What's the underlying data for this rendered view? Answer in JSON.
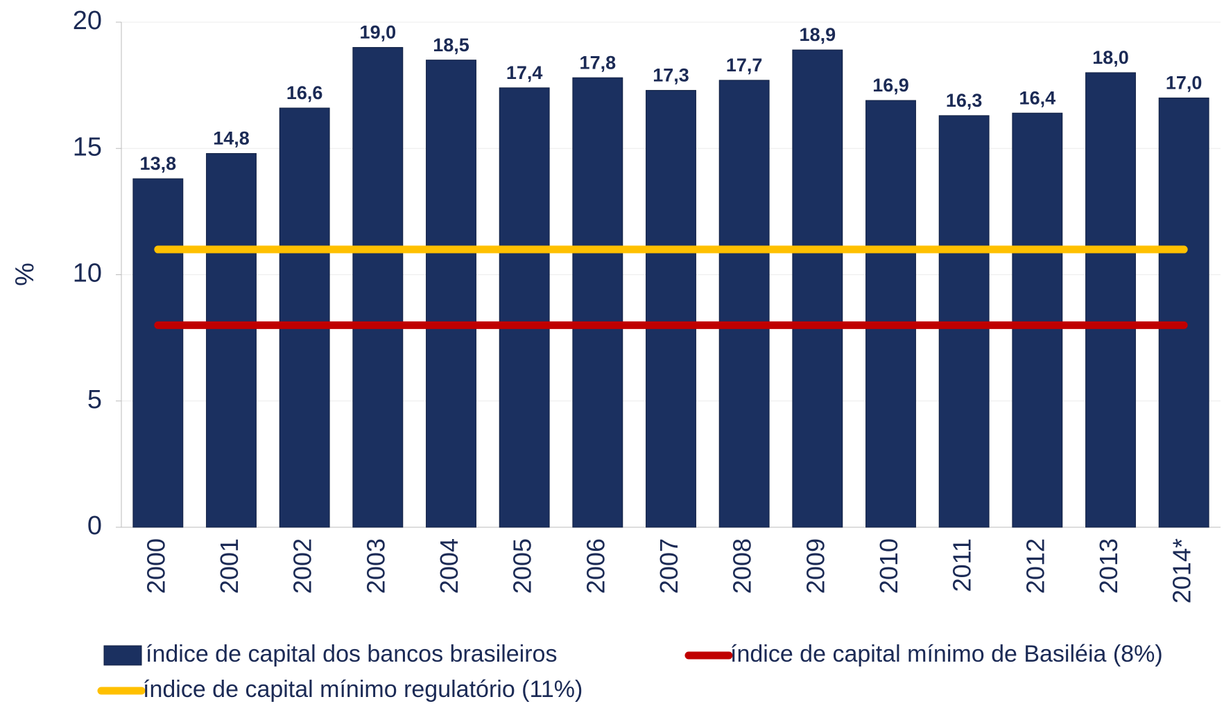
{
  "chart_data": {
    "type": "bar",
    "y_label": "%",
    "categories": [
      "2000",
      "2001",
      "2002",
      "2003",
      "2004",
      "2005",
      "2006",
      "2007",
      "2008",
      "2009",
      "2010",
      "2011",
      "2012",
      "2013",
      "2014*"
    ],
    "series": [
      {
        "name": "índice de capital dos bancos brasileiros",
        "type": "bar",
        "color": "#1b3060",
        "values": [
          13.8,
          14.8,
          16.6,
          19.0,
          18.5,
          17.4,
          17.8,
          17.3,
          17.7,
          18.9,
          16.9,
          16.3,
          16.4,
          18.0,
          17.0
        ],
        "value_labels": [
          "13,8",
          "14,8",
          "16,6",
          "19,0",
          "18,5",
          "17,4",
          "17,8",
          "17,3",
          "17,7",
          "18,9",
          "16,9",
          "16,3",
          "16,4",
          "18,0",
          "17,0"
        ]
      },
      {
        "name": "índice de capital mínimo de Basiléia (8%)",
        "type": "line",
        "color": "#c00000",
        "values": [
          8,
          8,
          8,
          8,
          8,
          8,
          8,
          8,
          8,
          8,
          8,
          8,
          8,
          8,
          8
        ]
      },
      {
        "name": "índice de capital mínimo regulatório (11%)",
        "type": "line",
        "color": "#ffc000",
        "values": [
          11,
          11,
          11,
          11,
          11,
          11,
          11,
          11,
          11,
          11,
          11,
          11,
          11,
          11,
          11
        ]
      }
    ],
    "ylim": [
      0,
      20
    ],
    "yticks": [
      0,
      5,
      10,
      15,
      20
    ],
    "grid": true
  }
}
